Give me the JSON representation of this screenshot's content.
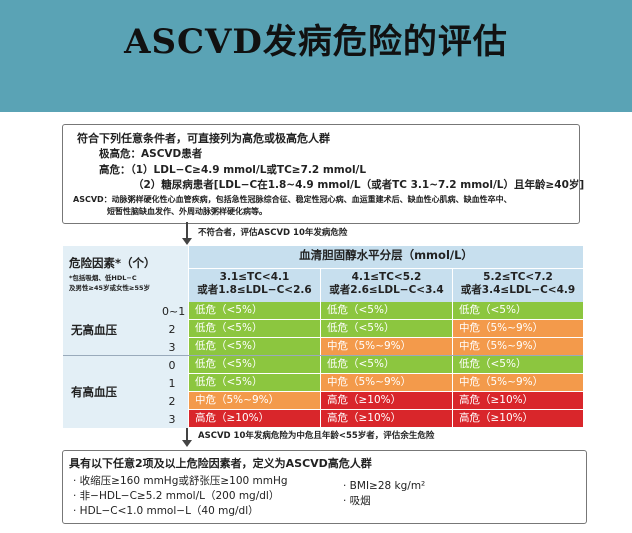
{
  "title": "ASCVD发病危险的评估",
  "top_box": {
    "heading": "符合下列任意条件者，可直接列为高危或极高危人群",
    "very_high": "极高危：ASCVD患者",
    "high_1": "高危：（1）LDL−C≥4.9 mmol/L或TC≥7.2 mmol/L",
    "high_2": "（2）糖尿病患者[LDL−C在1.8~4.9 mmol/L（或者TC 3.1~7.2 mmol/L）且年龄≥40岁]",
    "ascvd_def_1": "ASCVD：动脉粥样硬化性心血管疾病，包括急性冠脉综合征、稳定性冠心病、血运重建术后、缺血性心肌病、缺血性卒中、",
    "ascvd_def_2": "短暂性脑缺血发作、外周动脉粥样硬化病等。"
  },
  "arrow1_text": "不符合者，评估ASCVD 10年发病危险",
  "table": {
    "risk_factor_header": "危险因素*（个）",
    "risk_factor_note_1": "*包括吸烟、低HDL−C",
    "risk_factor_note_2": "及男性≥45岁或女性≥55岁",
    "cholesterol_header": "血清胆固醇水平分层（mmol/L）",
    "columns": [
      {
        "line1": "3.1≤TC<4.1",
        "line2": "或者1.8≤LDL−C<2.6"
      },
      {
        "line1": "4.1≤TC<5.2",
        "line2": "或者2.6≤LDL−C<3.4"
      },
      {
        "line1": "5.2≤TC<7.2",
        "line2": "或者3.4≤LDL−C<4.9"
      }
    ],
    "groups": [
      {
        "label": "无高血压",
        "rows": [
          {
            "count": "0~1",
            "cells": [
              {
                "text": "低危（<5%）",
                "level": "low"
              },
              {
                "text": "低危（<5%）",
                "level": "low"
              },
              {
                "text": "低危（<5%）",
                "level": "low"
              }
            ]
          },
          {
            "count": "2",
            "cells": [
              {
                "text": "低危（<5%）",
                "level": "low"
              },
              {
                "text": "低危（<5%）",
                "level": "low"
              },
              {
                "text": "中危（5%~9%）",
                "level": "mid"
              }
            ]
          },
          {
            "count": "3",
            "cells": [
              {
                "text": "低危（<5%）",
                "level": "low"
              },
              {
                "text": "中危（5%~9%）",
                "level": "mid"
              },
              {
                "text": "中危（5%~9%）",
                "level": "mid"
              }
            ]
          }
        ]
      },
      {
        "label": "有高血压",
        "rows": [
          {
            "count": "0",
            "cells": [
              {
                "text": "低危（<5%）",
                "level": "low"
              },
              {
                "text": "低危（<5%）",
                "level": "low"
              },
              {
                "text": "低危（<5%）",
                "level": "low"
              }
            ]
          },
          {
            "count": "1",
            "cells": [
              {
                "text": "低危（<5%）",
                "level": "low"
              },
              {
                "text": "中危（5%~9%）",
                "level": "mid"
              },
              {
                "text": "中危（5%~9%）",
                "level": "mid"
              }
            ]
          },
          {
            "count": "2",
            "cells": [
              {
                "text": "中危（5%~9%）",
                "level": "mid"
              },
              {
                "text": "高危（≥10%）",
                "level": "high"
              },
              {
                "text": "高危（≥10%）",
                "level": "high"
              }
            ]
          },
          {
            "count": "3",
            "cells": [
              {
                "text": "高危（≥10%）",
                "level": "high"
              },
              {
                "text": "高危（≥10%）",
                "level": "high"
              },
              {
                "text": "高危（≥10%）",
                "level": "high"
              }
            ]
          }
        ]
      }
    ]
  },
  "arrow2_text": "ASCVD 10年发病危险为中危且年龄<55岁者，评估余生危险",
  "bottom_box": {
    "heading": "具有以下任意2项及以上危险因素者，定义为ASCVD高危人群",
    "items_left": [
      "· 收缩压≥160 mmHg或舒张压≥100 mmHg",
      "· 非−HDL−C≥5.2 mmol/L（200 mg/dl）",
      "· HDL−C<1.0 mmol−L（40 mg/dl）"
    ],
    "items_right": [
      "· BMI≥28 kg/m²",
      "· 吸烟"
    ]
  },
  "colors": {
    "title_bg": "#5aa3b5",
    "low": "#8cc63f",
    "mid": "#f39a4b",
    "high": "#d9262b",
    "header_bg": "#c7dfee"
  }
}
